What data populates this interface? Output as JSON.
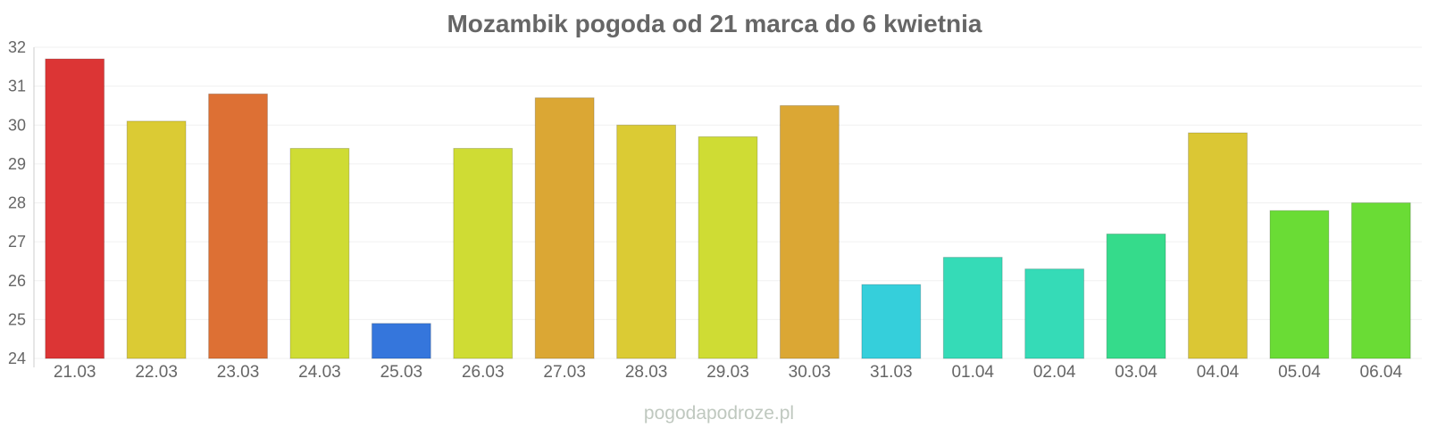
{
  "chart_data": {
    "type": "bar",
    "title": "Mozambik pogoda od 21 marca do 6 kwietnia",
    "xlabel": "",
    "ylabel": "",
    "categories": [
      "21.03",
      "22.03",
      "23.03",
      "24.03",
      "25.03",
      "26.03",
      "27.03",
      "28.03",
      "29.03",
      "30.03",
      "31.03",
      "01.04",
      "02.04",
      "03.04",
      "04.04",
      "05.04",
      "06.04"
    ],
    "values": [
      31.7,
      30.1,
      30.8,
      29.4,
      24.9,
      29.4,
      30.7,
      30.0,
      29.7,
      30.5,
      25.9,
      26.6,
      26.3,
      27.2,
      29.8,
      27.8,
      28.0
    ],
    "colors": [
      "#dc3535",
      "#dbcb34",
      "#dd7034",
      "#cfdc34",
      "#3576dc",
      "#cfdc34",
      "#dba734",
      "#dbcb34",
      "#cfdc34",
      "#dba734",
      "#35cfdb",
      "#35dbb7",
      "#35dbb7",
      "#35db8b",
      "#dbc734",
      "#6adc35",
      "#6adc35"
    ],
    "yticks": [
      24,
      25,
      26,
      27,
      28,
      29,
      30,
      31,
      32
    ],
    "ylim": [
      24,
      32
    ],
    "grid": true,
    "watermark": "pogodapodroze.pl"
  }
}
